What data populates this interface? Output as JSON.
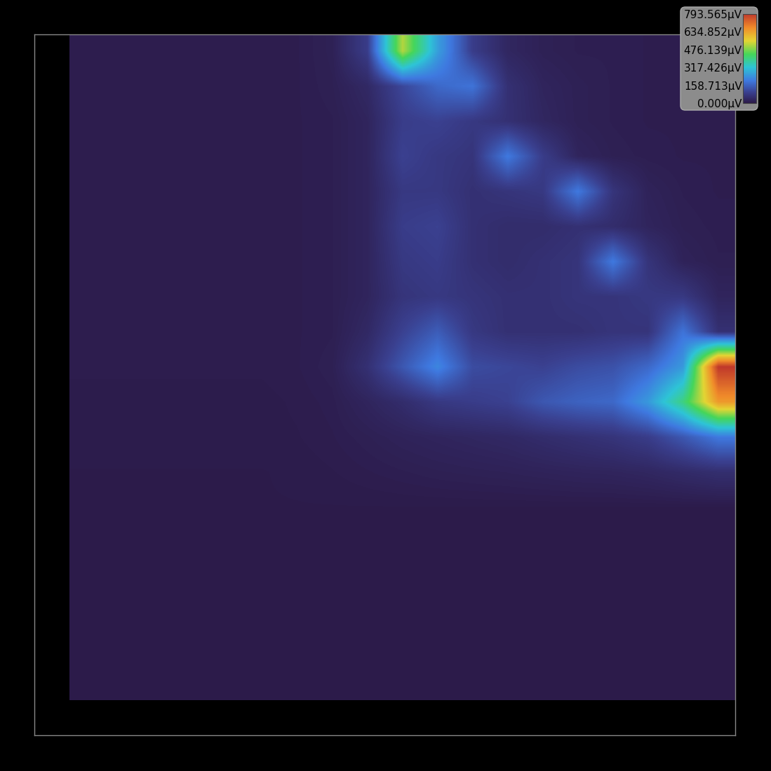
{
  "chart_data": {
    "type": "heatmap",
    "xlim": [
      0,
      20
    ],
    "ylim": [
      0,
      20
    ],
    "tick_labels": false,
    "cells_extent": [
      1,
      20,
      1,
      20
    ],
    "cells": [
      [
        10,
        10,
        10,
        10,
        10,
        10,
        12,
        20,
        90,
        520,
        260,
        90,
        35,
        20,
        15,
        15,
        12,
        12,
        12
      ],
      [
        10,
        10,
        10,
        10,
        10,
        10,
        12,
        18,
        40,
        110,
        170,
        190,
        60,
        30,
        20,
        15,
        12,
        12,
        12
      ],
      [
        10,
        10,
        10,
        10,
        10,
        10,
        12,
        15,
        30,
        90,
        100,
        80,
        60,
        35,
        20,
        15,
        12,
        12,
        12
      ],
      [
        10,
        10,
        10,
        10,
        10,
        10,
        12,
        15,
        30,
        100,
        80,
        70,
        200,
        90,
        30,
        18,
        14,
        12,
        12
      ],
      [
        10,
        10,
        10,
        10,
        10,
        10,
        12,
        15,
        30,
        80,
        80,
        60,
        70,
        80,
        200,
        70,
        25,
        15,
        12
      ],
      [
        10,
        10,
        10,
        10,
        10,
        10,
        12,
        15,
        30,
        90,
        100,
        60,
        50,
        50,
        60,
        50,
        30,
        18,
        14
      ],
      [
        10,
        10,
        10,
        10,
        10,
        10,
        12,
        15,
        30,
        80,
        90,
        60,
        50,
        60,
        70,
        200,
        70,
        25,
        16
      ],
      [
        10,
        10,
        10,
        10,
        10,
        10,
        12,
        15,
        30,
        70,
        80,
        70,
        60,
        60,
        70,
        70,
        80,
        80,
        30
      ],
      [
        10,
        10,
        10,
        10,
        10,
        10,
        12,
        15,
        40,
        100,
        150,
        80,
        60,
        60,
        60,
        70,
        70,
        190,
        60
      ],
      [
        10,
        10,
        10,
        10,
        10,
        10,
        12,
        18,
        60,
        140,
        220,
        120,
        110,
        100,
        120,
        130,
        170,
        250,
        793.565
      ],
      [
        8,
        8,
        8,
        8,
        8,
        8,
        10,
        14,
        30,
        50,
        80,
        90,
        100,
        140,
        160,
        170,
        250,
        400,
        650
      ],
      [
        8,
        8,
        8,
        8,
        8,
        8,
        9,
        12,
        18,
        25,
        30,
        35,
        40,
        50,
        60,
        70,
        90,
        140,
        200
      ],
      [
        6,
        6,
        6,
        6,
        6,
        6,
        7,
        9,
        12,
        15,
        18,
        20,
        22,
        25,
        28,
        30,
        35,
        45,
        55
      ],
      [
        6,
        6,
        6,
        6,
        6,
        6,
        6,
        6,
        6,
        6,
        6,
        6,
        6,
        6,
        6,
        6,
        6,
        6,
        6
      ],
      [
        6,
        6,
        6,
        6,
        6,
        6,
        6,
        6,
        6,
        6,
        6,
        6,
        6,
        6,
        6,
        6,
        6,
        6,
        6
      ],
      [
        6,
        6,
        6,
        6,
        6,
        6,
        6,
        6,
        6,
        6,
        6,
        6,
        6,
        6,
        6,
        6,
        6,
        6,
        6
      ],
      [
        6,
        6,
        6,
        6,
        6,
        6,
        6,
        6,
        6,
        6,
        6,
        6,
        6,
        6,
        6,
        6,
        6,
        6,
        6
      ],
      [
        6,
        6,
        6,
        6,
        6,
        6,
        6,
        6,
        6,
        6,
        6,
        6,
        6,
        6,
        6,
        6,
        6,
        6,
        6
      ],
      [
        6,
        6,
        6,
        6,
        6,
        6,
        6,
        6,
        6,
        6,
        6,
        6,
        6,
        6,
        6,
        6,
        6,
        6,
        6
      ]
    ],
    "colorbar_range": [
      0,
      793.565
    ],
    "colorbar_ticks": [
      {
        "value": 0,
        "label": "0.000µV"
      },
      {
        "value": 158.713,
        "label": "158.713µV"
      },
      {
        "value": 317.426,
        "label": "317.426µV"
      },
      {
        "value": 476.139,
        "label": "476.139µV"
      },
      {
        "value": 634.852,
        "label": "634.852µV"
      },
      {
        "value": 793.565,
        "label": "793.565µV"
      }
    ]
  }
}
